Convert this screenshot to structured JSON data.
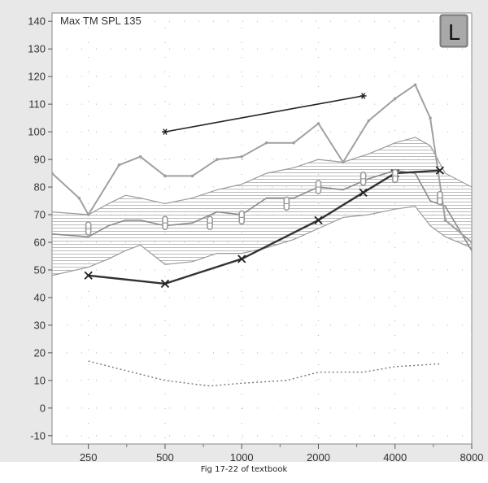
{
  "caption": "Fig 17-22 of textbook",
  "chart_data": {
    "type": "line",
    "title": "Max TM SPL 135",
    "badge": "L",
    "x_scale": "log",
    "x_ticks": [
      250,
      500,
      1000,
      2000,
      4000,
      8000
    ],
    "x_tick_labels": [
      "250",
      "500",
      "1000",
      "2000",
      "4000",
      "8000"
    ],
    "y_ticks": [
      -10,
      0,
      10,
      20,
      30,
      40,
      50,
      60,
      70,
      80,
      90,
      100,
      110,
      120,
      130,
      140
    ],
    "xlim": [
      180,
      8000
    ],
    "ylim": [
      -13,
      143
    ],
    "grid": "dotted",
    "colors": {
      "plot_background": "#ffffff",
      "outer_background": "#e8e8e8",
      "upper_curve": "#a0a0a0",
      "band_outline": "#9a9a9a",
      "band_hatch": "#a8a8a8",
      "middle_curve": "#8a8a8a",
      "threshold": "#333333",
      "ucl": "#222222",
      "noise": "#777777"
    },
    "upper_curve": {
      "x": [
        180,
        230,
        250,
        330,
        400,
        500,
        640,
        800,
        1000,
        1250,
        1600,
        2000,
        2500,
        3150,
        4000,
        4800,
        5500,
        6300,
        8000
      ],
      "y": [
        85,
        76,
        70,
        88,
        91,
        84,
        84,
        90,
        91,
        96,
        96,
        103,
        89,
        104,
        112,
        117,
        105,
        68,
        60
      ]
    },
    "band_upper": {
      "x": [
        180,
        250,
        300,
        350,
        400,
        500,
        640,
        800,
        1000,
        1250,
        1600,
        2000,
        2500,
        3150,
        4000,
        4800,
        5500,
        6300,
        8000
      ],
      "y": [
        71,
        70,
        74,
        77,
        76,
        74,
        76,
        79,
        81,
        85,
        87,
        90,
        89,
        92,
        96,
        98,
        95,
        85,
        80
      ]
    },
    "band_lower": {
      "x": [
        180,
        250,
        300,
        350,
        400,
        500,
        640,
        800,
        1000,
        1250,
        1600,
        2000,
        2500,
        3150,
        4000,
        4800,
        5500,
        6300,
        8000
      ],
      "y": [
        48,
        51,
        54,
        57,
        59,
        52,
        53,
        56,
        56,
        58,
        61,
        65,
        69,
        70,
        72,
        73,
        66,
        62,
        58
      ]
    },
    "middle_curve": {
      "x": [
        180,
        250,
        300,
        350,
        400,
        500,
        640,
        800,
        1000,
        1250,
        1600,
        2000,
        2500,
        3150,
        4000,
        4800,
        5500,
        6300,
        8000
      ],
      "y": [
        63,
        62,
        66,
        68,
        68,
        66,
        67,
        71,
        70,
        76,
        76,
        80,
        79,
        83,
        86,
        85,
        75,
        73,
        57
      ]
    },
    "hollow_markers": {
      "x": [
        250,
        500,
        750,
        1000,
        1500,
        2000,
        3000,
        4000,
        6000
      ],
      "y": [
        65,
        67,
        67,
        69,
        74,
        80,
        83,
        84,
        76
      ]
    },
    "threshold": {
      "x": [
        250,
        500,
        1000,
        2000,
        3000,
        4000,
        6000
      ],
      "y": [
        48,
        45,
        54,
        68,
        78,
        85,
        86
      ]
    },
    "ucl": {
      "x": [
        500,
        3000
      ],
      "y": [
        100,
        113
      ]
    },
    "noise_floor": {
      "x": [
        250,
        500,
        750,
        1000,
        1500,
        2000,
        3000,
        4000,
        6000
      ],
      "y": [
        17,
        10,
        8,
        9,
        10,
        13,
        13,
        15,
        16
      ]
    }
  }
}
